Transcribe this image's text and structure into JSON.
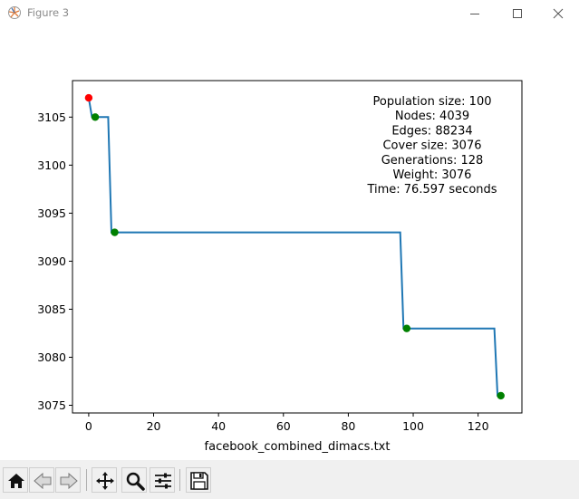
{
  "window": {
    "title": "Figure 3",
    "icon": "matplotlib-icon",
    "controls": [
      "minimize-icon",
      "maximize-icon",
      "close-icon"
    ]
  },
  "chart_data": {
    "type": "line",
    "xlabel": "facebook_combined_dimacs.txt",
    "ylabel": "",
    "title": "",
    "xlim": [
      -5,
      133.5
    ],
    "ylim": [
      3074.2,
      3108.8
    ],
    "x_ticks": [
      0,
      20,
      40,
      60,
      80,
      100,
      120
    ],
    "y_ticks": [
      3075,
      3080,
      3085,
      3090,
      3095,
      3100,
      3105
    ],
    "series": [
      {
        "color": "#1f77b4",
        "x": [
          0,
          0.5,
          1,
          2,
          3,
          6,
          7,
          8,
          12,
          20,
          40,
          60,
          80,
          96,
          97,
          98,
          110,
          125,
          126,
          127
        ],
        "values": [
          3107,
          3106,
          3105,
          3105,
          3105,
          3105,
          3093,
          3093,
          3093,
          3093,
          3093,
          3093,
          3093,
          3093,
          3083,
          3083,
          3083,
          3083,
          3076,
          3076
        ]
      }
    ],
    "markers": [
      {
        "x": 0,
        "y": 3107,
        "color": "#ff0000"
      },
      {
        "x": 2,
        "y": 3105,
        "color": "#008000"
      },
      {
        "x": 8,
        "y": 3093,
        "color": "#008000"
      },
      {
        "x": 98,
        "y": 3083,
        "color": "#008000"
      },
      {
        "x": 127,
        "y": 3076,
        "color": "#008000"
      }
    ],
    "annotation": [
      "Population size: 100",
      "Nodes: 4039",
      "Edges: 88234",
      "Cover size: 3076",
      "Generations: 128",
      "Weight: 3076",
      "Time: 76.597 seconds"
    ],
    "grid": false
  },
  "toolbar": {
    "buttons": [
      "home-icon",
      "back-arrow-icon",
      "forward-arrow-icon",
      "pan-icon",
      "zoom-icon",
      "configure-subplots-icon",
      "save-icon"
    ]
  }
}
